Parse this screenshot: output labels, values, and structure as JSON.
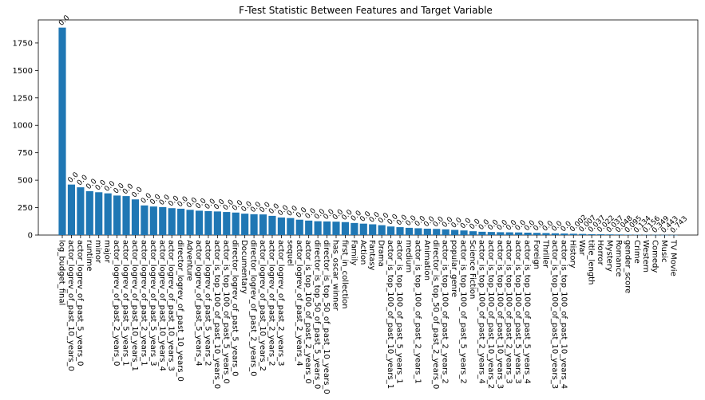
{
  "chart_data": {
    "type": "bar",
    "title": "F-Test Statistic Between Features and Target Variable",
    "xlabel": "",
    "ylabel": "",
    "ylim": [
      0,
      1960
    ],
    "yticks": [
      0,
      250,
      500,
      750,
      1000,
      1250,
      1500,
      1750
    ],
    "grid": false,
    "bar_color": "#1f77b4",
    "categories": [
      "log_budget_final",
      "actor_logrev_of_past_10_years_0",
      "actor_logrev_of_past_5_years_0",
      "runtime",
      "minor",
      "major",
      "actor_logrev_of_past_2_years_0",
      "actor_logrev_of_past_5_years_1",
      "actor_logrev_of_past_10_years_1",
      "actor_logrev_of_past_2_years_1",
      "actor_logrev_of_past_5_years_3",
      "actor_logrev_of_past_10_years_4",
      "actor_logrev_of_past_10_years_3",
      "director_logrev_of_past_10_years_0",
      "Adventure",
      "actor_logrev_of_past_5_years_4",
      "actor_logrev_of_past_5_years_2",
      "actor_is_top_100_of_past_10_years_0",
      "actor_is_top_100_of_past_5_years_0",
      "director_logrev_of_past_5_years_0",
      "Documentary",
      "director_logrev_of_past_2_years_0",
      "actor_logrev_of_past_10_years_2",
      "actor_logrev_of_past_2_years_2",
      "actor_logrev_of_past_2_years_3",
      "sequel",
      "actor_logrev_of_past_2_years_4",
      "actor_is_top_100_of_past_2_years_0",
      "director_is_top_50_of_past_5_years_0",
      "director_is_top_50_of_past_10_years_0",
      "has_oscar_winner",
      "first_in_collection",
      "Family",
      "Action",
      "Fantasy",
      "Drama",
      "actor_is_top_100_of_past_10_years_1",
      "actor_is_top_100_of_past_5_years_1",
      "medium",
      "actor_is_top_100_of_past_2_years_1",
      "Animation",
      "director_is_top_50_of_past_2_years_0",
      "actor_is_top_100_of_past_2_years_2",
      "popular_genre",
      "actor_is_top_100_of_past_5_years_2",
      "Science Fiction",
      "actor_is_top_100_of_past_2_years_4",
      "actor_is_top_100_of_past_10_years_2",
      "actor_is_top_100_of_past_10_years_3",
      "actor_is_top_100_of_past_2_years_3",
      "actor_is_top_100_of_past_5_years_3",
      "actor_is_top_100_of_past_5_years_4",
      "Foreign",
      "Thriller",
      "actor_is_top_100_of_past_10_years_3",
      "actor_is_top_100_of_past_10_years_4",
      "History",
      "War",
      "title_length",
      "Horror",
      "Mystery",
      "Romance",
      "gender_score",
      "Crime",
      "Western",
      "Comedy",
      "Music",
      "TV Movie"
    ],
    "values": [
      1890,
      460,
      435,
      400,
      390,
      380,
      360,
      355,
      325,
      270,
      260,
      255,
      245,
      240,
      230,
      222,
      218,
      215,
      210,
      205,
      195,
      190,
      188,
      175,
      160,
      155,
      140,
      132,
      126,
      124,
      122,
      118,
      110,
      104,
      98,
      90,
      78,
      72,
      66,
      62,
      58,
      56,
      52,
      47,
      42,
      35,
      30,
      28,
      26,
      25,
      24,
      22,
      20,
      18,
      16,
      14,
      12,
      10,
      8,
      7,
      6,
      5,
      4,
      3,
      2.5,
      2,
      1.5,
      1
    ],
    "bar_labels": [
      "0.0",
      "0.0",
      "0.0",
      "0.0",
      "0.0",
      "0.0",
      "0.0",
      "0.0",
      "0.0",
      "0.0",
      "0.0",
      "0.0",
      "0.0",
      "0.0",
      "0.0",
      "0.0",
      "0.0",
      "0.0",
      "0.0",
      "0.0",
      "0.0",
      "0.0",
      "0.0",
      "0.0",
      "0.0",
      "0.0",
      "0.0",
      "0.0",
      "0.0",
      "0.0",
      "0.0",
      "0.0",
      "0.0",
      "0.0",
      "0.0",
      "0.0",
      "0.0",
      "0.0",
      "0.0",
      "0.0",
      "0.0",
      "0.0",
      "0.0",
      "0.0",
      "0.0",
      "0.0",
      "0.0",
      "0.0",
      "0.0",
      "0.0",
      "0.0",
      "0.0",
      "0.0",
      "0.0",
      "0.0",
      "0.0",
      "0.002",
      "0.007",
      "0.037",
      "0.022",
      "0.037",
      "0.048",
      "0.095",
      "0.134",
      "0.156",
      "0.349",
      "0.443",
      "0.743"
    ]
  }
}
